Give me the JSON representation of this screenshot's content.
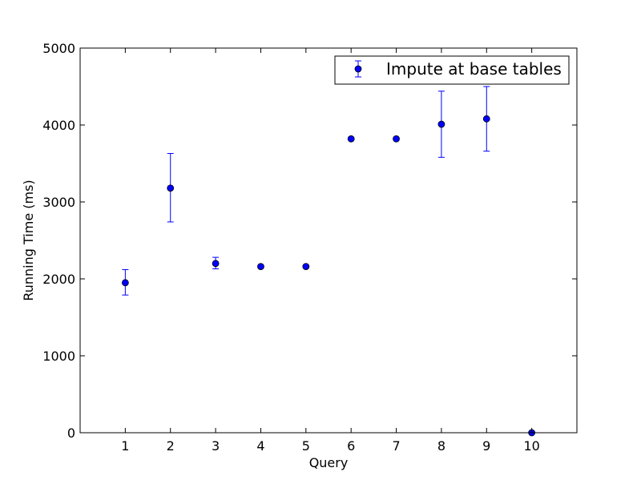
{
  "chart_data": {
    "type": "scatter",
    "title": "",
    "xlabel": "Query",
    "ylabel": "Running Time (ms)",
    "xlim": [
      0,
      11
    ],
    "ylim": [
      0,
      5000
    ],
    "x_ticks": [
      "1",
      "2",
      "3",
      "4",
      "5",
      "6",
      "7",
      "8",
      "9",
      "10"
    ],
    "y_ticks": [
      "0",
      "1000",
      "2000",
      "3000",
      "4000",
      "5000"
    ],
    "grid": false,
    "legend_position": "top-right",
    "series": [
      {
        "name": "Impute at base tables",
        "color": "#0000ff",
        "marker": "circle",
        "error_bars": true,
        "points": [
          {
            "x": 1,
            "y": 1950,
            "low": 1790,
            "high": 2120
          },
          {
            "x": 2,
            "y": 3180,
            "low": 2740,
            "high": 3630
          },
          {
            "x": 3,
            "y": 2200,
            "low": 2130,
            "high": 2280
          },
          {
            "x": 4,
            "y": 2160,
            "low": 2160,
            "high": 2160
          },
          {
            "x": 5,
            "y": 2160,
            "low": 2160,
            "high": 2160
          },
          {
            "x": 6,
            "y": 3820,
            "low": 3820,
            "high": 3820
          },
          {
            "x": 7,
            "y": 3820,
            "low": 3820,
            "high": 3820
          },
          {
            "x": 8,
            "y": 4010,
            "low": 3580,
            "high": 4440
          },
          {
            "x": 9,
            "y": 4080,
            "low": 3660,
            "high": 4500
          },
          {
            "x": 10,
            "y": 0,
            "low": 0,
            "high": 0
          }
        ]
      }
    ]
  }
}
